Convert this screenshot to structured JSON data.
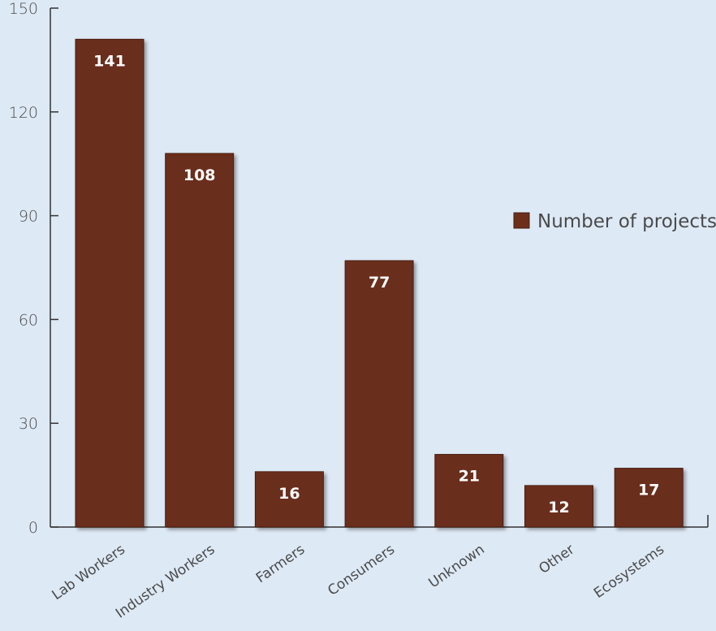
{
  "chart_data": {
    "type": "bar",
    "categories": [
      "Lab Workers",
      "Industry Workers",
      "Farmers",
      "Consumers",
      "Unknown",
      "Other",
      "Ecosystems"
    ],
    "series": [
      {
        "name": "Number of projects",
        "values": [
          141,
          108,
          16,
          77,
          21,
          12,
          17
        ]
      }
    ],
    "ylim": [
      0,
      150
    ],
    "yticks": [
      0,
      30,
      60,
      90,
      120,
      150
    ],
    "grid": false,
    "legend": "right",
    "colors": {
      "bar": "#6b2f1a",
      "bar_stroke": "#4a1f10",
      "axis": "#333333",
      "background": "#dde9f5"
    }
  }
}
